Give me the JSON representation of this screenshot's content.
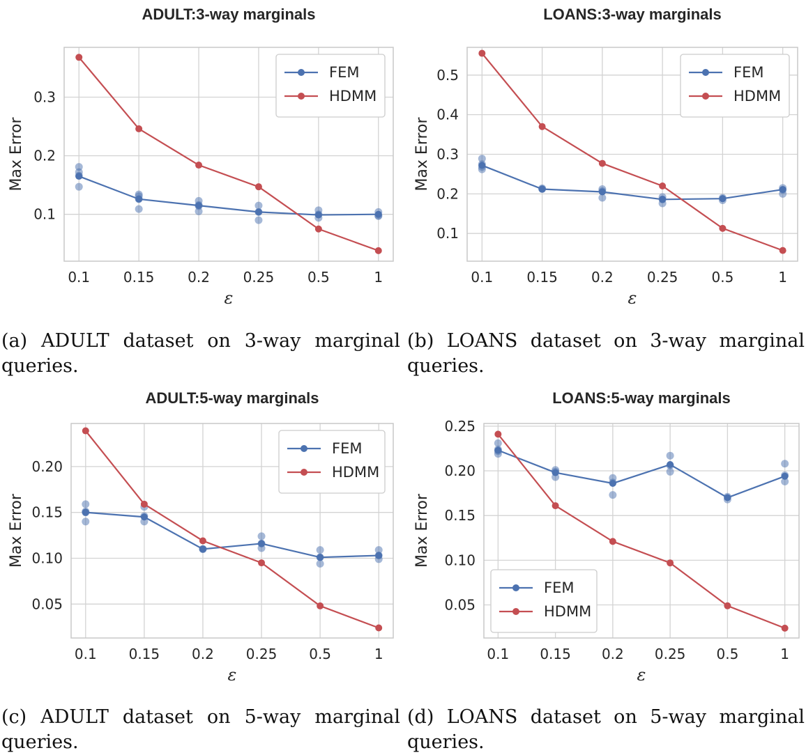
{
  "colors": {
    "fem": "#4c72b0",
    "hdmm": "#c44e52"
  },
  "chart_data": [
    {
      "type": "line",
      "title": "ADULT:3-way marginals",
      "xlabel": "ε",
      "ylabel": "Max Error",
      "categories": [
        "0.1",
        "0.15",
        "0.2",
        "0.25",
        "0.5",
        "1"
      ],
      "ylim": [
        0.02,
        0.385
      ],
      "yticks": [
        0.1,
        0.2,
        0.3
      ],
      "ytick_labels": [
        "0.1",
        "0.2",
        "0.3"
      ],
      "legend": "top-right",
      "series": [
        {
          "name": "FEM",
          "values": [
            0.165,
            0.126,
            0.115,
            0.104,
            0.099,
            0.1
          ]
        },
        {
          "name": "HDMM",
          "values": [
            0.368,
            0.246,
            0.184,
            0.147,
            0.075,
            0.038
          ]
        }
      ],
      "fem_runs": [
        [
          0.181,
          0.172,
          0.166,
          0.147
        ],
        [
          0.134,
          0.131,
          0.126,
          0.109
        ],
        [
          0.123,
          0.116,
          0.114,
          0.105
        ],
        [
          0.115,
          0.104,
          0.09
        ],
        [
          0.107,
          0.1,
          0.094
        ],
        [
          0.104,
          0.098,
          0.097
        ]
      ]
    },
    {
      "type": "line",
      "title": "LOANS:3-way marginals",
      "xlabel": "ε",
      "ylabel": "Max Error",
      "categories": [
        "0.1",
        "0.15",
        "0.2",
        "0.25",
        "0.5",
        "1"
      ],
      "ylim": [
        0.03,
        0.57
      ],
      "yticks": [
        0.1,
        0.2,
        0.3,
        0.4,
        0.5
      ],
      "ytick_labels": [
        "0.1",
        "0.2",
        "0.3",
        "0.4",
        "0.5"
      ],
      "legend": "top-right",
      "series": [
        {
          "name": "FEM",
          "values": [
            0.272,
            0.212,
            0.205,
            0.186,
            0.188,
            0.211
          ]
        },
        {
          "name": "HDMM",
          "values": [
            0.555,
            0.37,
            0.277,
            0.22,
            0.113,
            0.057
          ]
        }
      ],
      "fem_runs": [
        [
          0.289,
          0.275,
          0.268,
          0.262
        ],
        [
          0.214,
          0.212
        ],
        [
          0.212,
          0.207,
          0.19
        ],
        [
          0.192,
          0.186,
          0.176
        ],
        [
          0.19,
          0.184
        ],
        [
          0.215,
          0.21,
          0.2
        ]
      ]
    },
    {
      "type": "line",
      "title": "ADULT:5-way marginals",
      "xlabel": "ε",
      "ylabel": "Max Error",
      "categories": [
        "0.1",
        "0.15",
        "0.2",
        "0.25",
        "0.5",
        "1"
      ],
      "ylim": [
        0.013,
        0.247
      ],
      "yticks": [
        0.05,
        0.1,
        0.15,
        0.2
      ],
      "ytick_labels": [
        "0.05",
        "0.10",
        "0.15",
        "0.20"
      ],
      "legend": "top-right",
      "series": [
        {
          "name": "FEM",
          "values": [
            0.15,
            0.145,
            0.11,
            0.116,
            0.101,
            0.103
          ]
        },
        {
          "name": "HDMM",
          "values": [
            0.239,
            0.159,
            0.119,
            0.095,
            0.048,
            0.024
          ]
        }
      ],
      "fem_runs": [
        [
          0.159,
          0.151,
          0.15,
          0.14
        ],
        [
          0.156,
          0.146,
          0.14
        ],
        [
          0.11,
          0.11
        ],
        [
          0.124,
          0.116,
          0.111
        ],
        [
          0.109,
          0.101,
          0.094
        ],
        [
          0.109,
          0.103,
          0.099
        ]
      ]
    },
    {
      "type": "line",
      "title": "LOANS:5-way marginals",
      "xlabel": "ε",
      "ylabel": "Max Error",
      "categories": [
        "0.1",
        "0.15",
        "0.2",
        "0.25",
        "0.5",
        "1"
      ],
      "ylim": [
        0.013,
        0.253
      ],
      "yticks": [
        0.05,
        0.1,
        0.15,
        0.2,
        0.25
      ],
      "ytick_labels": [
        "0.05",
        "0.10",
        "0.15",
        "0.20",
        "0.25"
      ],
      "legend": "lower-left",
      "series": [
        {
          "name": "FEM",
          "values": [
            0.223,
            0.198,
            0.186,
            0.207,
            0.17,
            0.194
          ]
        },
        {
          "name": "HDMM",
          "values": [
            0.241,
            0.161,
            0.121,
            0.097,
            0.049,
            0.024
          ]
        }
      ],
      "fem_runs": [
        [
          0.231,
          0.224,
          0.222,
          0.219
        ],
        [
          0.201,
          0.199,
          0.193
        ],
        [
          0.192,
          0.187,
          0.173
        ],
        [
          0.217,
          0.206,
          0.199
        ],
        [
          0.171,
          0.168
        ],
        [
          0.208,
          0.195,
          0.188
        ]
      ]
    }
  ],
  "captions": [
    {
      "first": "(a) ADULT dataset on 3-way marginal",
      "rest": "queries."
    },
    {
      "first": "(b) LOANS dataset on 3-way marginal",
      "rest": "queries."
    },
    {
      "first": "(c) ADULT dataset on 5-way marginal",
      "rest": "queries."
    },
    {
      "first": "(d) LOANS dataset on 5-way marginal",
      "rest": "queries."
    }
  ]
}
